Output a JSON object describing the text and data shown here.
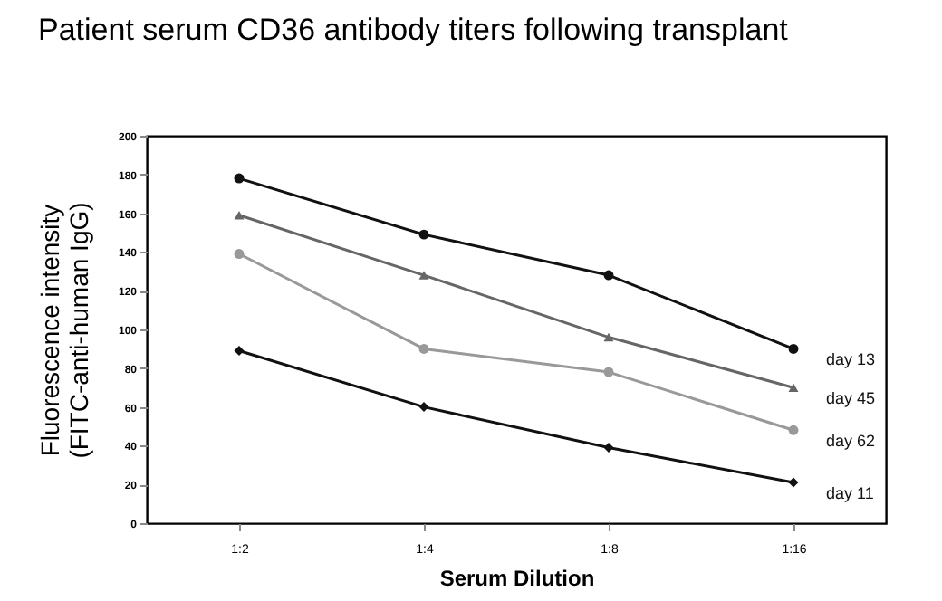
{
  "chart_data": {
    "type": "line",
    "title": "Patient serum CD36 antibody titers following transplant",
    "xlabel": "Serum Dilution",
    "ylabel": "Fluorescence intensity\n(FITC-anti-human IgG)",
    "categories": [
      "1:2",
      "1:4",
      "1:8",
      "1:16"
    ],
    "series": [
      {
        "name": "day 13",
        "color": "#111111",
        "marker": "circle",
        "values": [
          178,
          149,
          128,
          90
        ]
      },
      {
        "name": "day 45",
        "color": "#666666",
        "marker": "triangle",
        "values": [
          159,
          128,
          96,
          70
        ]
      },
      {
        "name": "day 62",
        "color": "#999999",
        "marker": "circle",
        "values": [
          139,
          90,
          78,
          48
        ]
      },
      {
        "name": "day 11",
        "color": "#111111",
        "marker": "diamond",
        "values": [
          89,
          60,
          39,
          21
        ]
      }
    ],
    "ylim": [
      0,
      200
    ],
    "yticks": [
      0,
      20,
      40,
      60,
      80,
      100,
      120,
      140,
      160,
      180,
      200
    ],
    "grid": false,
    "legend": false,
    "line_style": "solid"
  }
}
